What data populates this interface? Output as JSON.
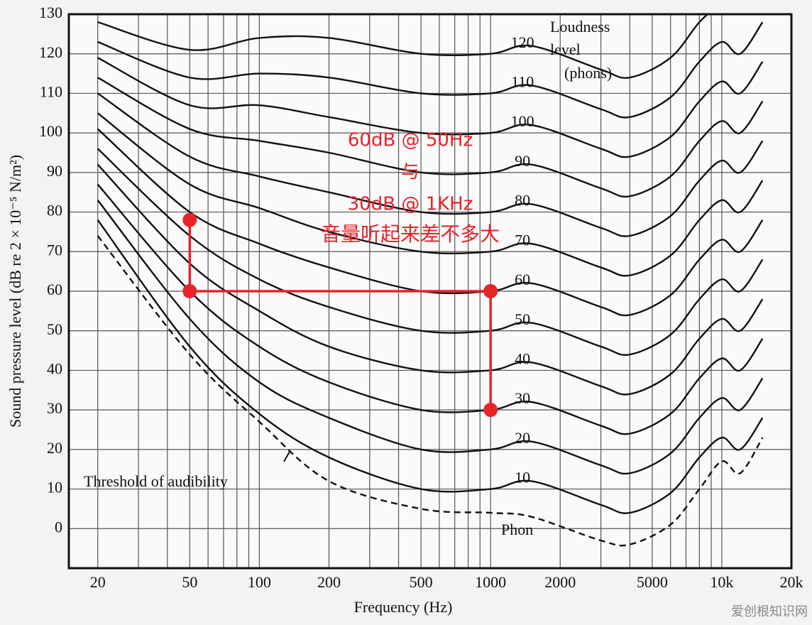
{
  "chart_data": {
    "type": "line",
    "x_label": "Frequency (Hz)",
    "y_label": "Sound pressure level (dB re 2 × 10⁻⁵ N/m²)",
    "log_x": true,
    "grid": true,
    "xlim": [
      15,
      20000
    ],
    "ylim": [
      -10,
      130
    ],
    "xticks": [
      20,
      50,
      100,
      200,
      500,
      1000,
      2000,
      5000,
      {
        "value": 10000,
        "label": "10k"
      },
      {
        "value": 20000,
        "label": "20k"
      }
    ],
    "xgrid_minor": [
      30,
      40,
      60,
      70,
      80,
      90,
      300,
      400,
      600,
      700,
      800,
      900,
      3000,
      4000,
      6000,
      7000,
      8000,
      9000
    ],
    "yticks": [
      0,
      10,
      20,
      30,
      40,
      50,
      60,
      70,
      80,
      90,
      100,
      110,
      120,
      130
    ],
    "x": [
      20,
      50,
      100,
      200,
      500,
      1000,
      1500,
      3000,
      4000,
      6000,
      8000,
      10000,
      12000,
      15000
    ],
    "series": [
      {
        "name": "Threshold of audibility",
        "color": "#111111",
        "dashed": true,
        "values": [
          74,
          44,
          27,
          12,
          5,
          4,
          3,
          -3,
          -4,
          1,
          10,
          17,
          14,
          23
        ]
      },
      {
        "name": "10",
        "color": "#111111",
        "values": [
          78,
          46,
          29,
          18,
          10,
          10,
          12,
          6,
          4,
          9,
          18,
          23,
          20,
          28
        ]
      },
      {
        "name": "20",
        "color": "#111111",
        "values": [
          83,
          53,
          37,
          28,
          20,
          20,
          22,
          16,
          14,
          19,
          28,
          33,
          30,
          38
        ]
      },
      {
        "name": "30",
        "color": "#111111",
        "values": [
          87,
          60,
          46,
          37,
          30,
          30,
          32,
          26,
          24,
          29,
          38,
          43,
          40,
          48
        ]
      },
      {
        "name": "40",
        "color": "#111111",
        "values": [
          92,
          67,
          55,
          46,
          40,
          40,
          42,
          36,
          34,
          39,
          48,
          53,
          50,
          58
        ]
      },
      {
        "name": "50",
        "color": "#111111",
        "values": [
          96,
          74,
          63,
          56,
          50,
          50,
          52,
          46,
          44,
          49,
          58,
          63,
          60,
          68
        ]
      },
      {
        "name": "60",
        "color": "#111111",
        "values": [
          101,
          80,
          72,
          66,
          60,
          60,
          62,
          56,
          54,
          59,
          68,
          73,
          70,
          78
        ]
      },
      {
        "name": "70",
        "color": "#111111",
        "values": [
          105,
          87,
          81,
          75,
          70,
          70,
          72,
          66,
          64,
          69,
          78,
          83,
          80,
          88
        ]
      },
      {
        "name": "80",
        "color": "#111111",
        "values": [
          110,
          94,
          89,
          85,
          80,
          80,
          82,
          76,
          74,
          79,
          88,
          93,
          90,
          98
        ]
      },
      {
        "name": "90",
        "color": "#111111",
        "values": [
          114,
          101,
          98,
          95,
          90,
          90,
          92,
          86,
          84,
          89,
          98,
          103,
          100,
          108
        ]
      },
      {
        "name": "100",
        "color": "#111111",
        "values": [
          119,
          107,
          107,
          104,
          100,
          100,
          102,
          96,
          94,
          99,
          108,
          113,
          110,
          118
        ]
      },
      {
        "name": "110",
        "color": "#111111",
        "values": [
          123,
          114,
          115,
          114,
          110,
          110,
          112,
          106,
          104,
          109,
          118,
          123,
          120,
          128
        ]
      },
      {
        "name": "120",
        "color": "#111111",
        "values": [
          128,
          121,
          124,
          124,
          120,
          120,
          122,
          116,
          114,
          119,
          128,
          133,
          null,
          null
        ]
      }
    ],
    "annotations": {
      "legend_title": [
        "Loudness",
        "level",
        "(phons)"
      ],
      "phon_label": "Phon"
    },
    "highlight": {
      "color": "#e8232a",
      "x": [
        50,
        50,
        1000,
        1000
      ],
      "values": [
        78,
        60,
        60,
        30
      ],
      "text": [
        "60dB @ 50Hz",
        "与",
        "30dB @ 1KHz",
        "音量听起来差不多大"
      ]
    },
    "watermark": "爱创根知识网"
  }
}
